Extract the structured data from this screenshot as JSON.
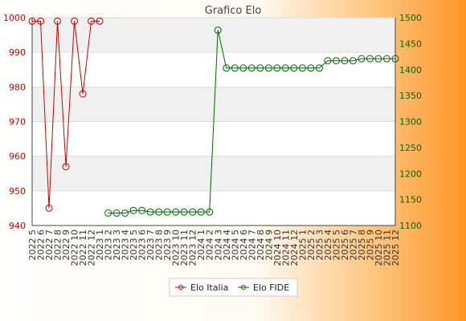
{
  "chart_data": {
    "type": "line",
    "title": "Grafico Elo",
    "categories": [
      "2022 5",
      "2022 6",
      "2022 7",
      "2022 8",
      "2022 9",
      "2022 10",
      "2022 11",
      "2022 12",
      "2023 1",
      "2023 2",
      "2023 3",
      "2023 4",
      "2023 5",
      "2023 6",
      "2023 7",
      "2023 8",
      "2023 9",
      "2023 10",
      "2023 11",
      "2023 12",
      "2024 1",
      "2024 2",
      "2024 3",
      "2024 4",
      "2024 5",
      "2024 6",
      "2024 7",
      "2024 8",
      "2024 9",
      "2024 10",
      "2024 11",
      "2024 12",
      "2025 1",
      "2025 2",
      "2025 3",
      "2025 4",
      "2025 5",
      "2025 6",
      "2025 7",
      "2025 8",
      "2025 9",
      "2025 10",
      "2025 11",
      "2025 12"
    ],
    "y_left": {
      "lim": [
        940,
        1000
      ],
      "ticks": [
        940,
        950,
        960,
        970,
        980,
        990,
        1000
      ],
      "color": "#cc0000"
    },
    "y_right": {
      "lim": [
        1100,
        1500
      ],
      "ticks": [
        1100,
        1150,
        1200,
        1250,
        1300,
        1350,
        1400,
        1450,
        1500
      ],
      "color": "#006600"
    },
    "grid": true,
    "legend_position": "bottom-center",
    "series": [
      {
        "name": "Elo Italia",
        "axis": "left",
        "color": "#cc0000",
        "values": [
          999,
          999,
          945,
          999,
          957,
          999,
          978,
          999,
          999,
          null,
          null,
          null,
          null,
          null,
          null,
          null,
          null,
          null,
          null,
          null,
          null,
          null,
          null,
          null,
          null,
          null,
          null,
          null,
          null,
          null,
          null,
          null,
          null,
          null,
          null,
          null,
          null,
          null,
          null,
          null,
          null,
          null,
          null,
          null
        ]
      },
      {
        "name": "Elo FIDE",
        "axis": "right",
        "color": "#006600",
        "values": [
          null,
          null,
          null,
          null,
          null,
          null,
          null,
          null,
          null,
          1124,
          1124,
          1124,
          1129,
          1129,
          1126,
          1126,
          1126,
          1126,
          1126,
          1126,
          1126,
          1126,
          1476,
          1403,
          1403,
          1403,
          1403,
          1403,
          1403,
          1403,
          1403,
          1403,
          1403,
          1403,
          1403,
          1417,
          1417,
          1417,
          1417,
          1421,
          1421,
          1421,
          1421,
          1421
        ]
      }
    ]
  }
}
